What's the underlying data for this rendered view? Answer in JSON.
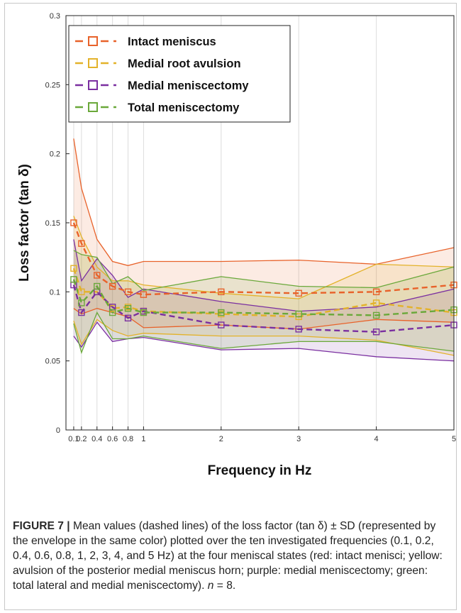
{
  "chart_data": {
    "type": "line",
    "title": "",
    "xlabel": "Frequency in Hz",
    "ylabel": "Loss factor (tan δ)",
    "xlim": [
      0,
      5
    ],
    "ylim": [
      0,
      0.3
    ],
    "x": [
      0.1,
      0.2,
      0.4,
      0.6,
      0.8,
      1,
      2,
      3,
      4,
      5
    ],
    "x_ticks": [
      0.1,
      0.2,
      0.4,
      0.6,
      0.8,
      1,
      2,
      3,
      4,
      5
    ],
    "x_tick_labels": [
      "0.1",
      "0.2",
      "0.4",
      "0.6",
      "0.8",
      "1",
      "2",
      "3",
      "4",
      "5"
    ],
    "y_ticks": [
      0,
      0.05,
      0.1,
      0.15,
      0.2,
      0.25,
      0.3
    ],
    "y_tick_labels": [
      "0",
      "0.05",
      "0.1",
      "0.15",
      "0.2",
      "0.25",
      "0.3"
    ],
    "grid": "vertical-at-x-ticks",
    "legend_position": "top-left",
    "series": [
      {
        "name": "Intact meniscus",
        "color": "#e8622a",
        "mean": [
          0.15,
          0.135,
          0.112,
          0.104,
          0.1,
          0.098,
          0.1,
          0.099,
          0.1,
          0.105
        ],
        "upper": [
          0.211,
          0.175,
          0.138,
          0.122,
          0.119,
          0.122,
          0.122,
          0.123,
          0.12,
          0.132
        ],
        "lower": [
          0.088,
          0.084,
          0.088,
          0.085,
          0.082,
          0.074,
          0.076,
          0.073,
          0.08,
          0.078
        ]
      },
      {
        "name": "Medial root avulsion",
        "color": "#e3b22a",
        "mean": [
          0.117,
          0.1,
          0.1,
          0.088,
          0.089,
          0.086,
          0.084,
          0.082,
          0.092,
          0.085
        ],
        "upper": [
          0.155,
          0.14,
          0.118,
          0.108,
          0.108,
          0.105,
          0.099,
          0.095,
          0.12,
          0.118
        ],
        "lower": [
          0.079,
          0.062,
          0.08,
          0.072,
          0.068,
          0.07,
          0.068,
          0.068,
          0.065,
          0.054
        ]
      },
      {
        "name": "Medial meniscectomy",
        "color": "#7a2fa0",
        "mean": [
          0.105,
          0.085,
          0.1,
          0.089,
          0.081,
          0.086,
          0.076,
          0.073,
          0.071,
          0.076
        ],
        "upper": [
          0.138,
          0.108,
          0.124,
          0.112,
          0.096,
          0.102,
          0.093,
          0.086,
          0.089,
          0.102
        ],
        "lower": [
          0.068,
          0.06,
          0.078,
          0.064,
          0.066,
          0.067,
          0.058,
          0.059,
          0.053,
          0.05
        ]
      },
      {
        "name": "Total meniscectomy",
        "color": "#6aa83a",
        "mean": [
          0.109,
          0.092,
          0.104,
          0.085,
          0.088,
          0.085,
          0.085,
          0.084,
          0.083,
          0.087
        ],
        "upper": [
          0.13,
          0.127,
          0.125,
          0.106,
          0.111,
          0.101,
          0.111,
          0.104,
          0.103,
          0.118
        ],
        "lower": [
          0.077,
          0.056,
          0.085,
          0.066,
          0.066,
          0.068,
          0.059,
          0.064,
          0.064,
          0.057
        ]
      }
    ]
  },
  "caption": {
    "label": "FIGURE 7 |",
    "part1": " Mean values (dashed lines) of the loss factor (tan δ) ± SD (represented by the envelope in the same color) plotted over the ten investigated frequencies (0.1, 0.2, 0.4, 0.6, 0.8, 1, 2, 3, 4, and 5 Hz) at the four meniscal states (red: intact menisci; yellow: avulsion of the posterior medial meniscus horn; purple: medial meniscectomy; green: total lateral and medial meniscectomy). ",
    "n_var": "n",
    "part2": " = 8."
  }
}
